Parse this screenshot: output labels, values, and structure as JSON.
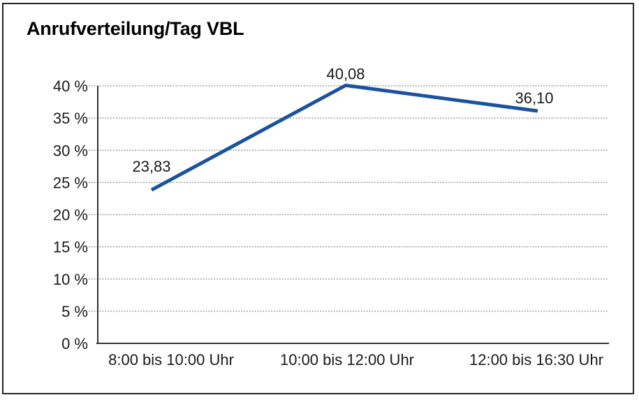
{
  "chart_data": {
    "type": "line",
    "title": "Anrufverteilung/Tag VBL",
    "categories": [
      "8:00 bis 10:00 Uhr",
      "10:00 bis 12:00 Uhr",
      "12:00 bis 16:30 Uhr"
    ],
    "values": [
      23.83,
      40.08,
      36.1
    ],
    "value_labels": [
      "23,83",
      "40,08",
      "36,10"
    ],
    "xlabel": "",
    "ylabel": "",
    "ylim": [
      0,
      40
    ],
    "ytick_step": 5,
    "ytick_labels": [
      "0 %",
      "5 %",
      "10 %",
      "15 %",
      "20 %",
      "25 %",
      "30 %",
      "35 %",
      "40 %"
    ],
    "grid": "horizontal-dotted",
    "legend": "none",
    "line_color": "#1B529E",
    "axis_color": "#1a1a1a",
    "grid_color": "#6b6b6b",
    "text_color": "#1a1a1a"
  }
}
